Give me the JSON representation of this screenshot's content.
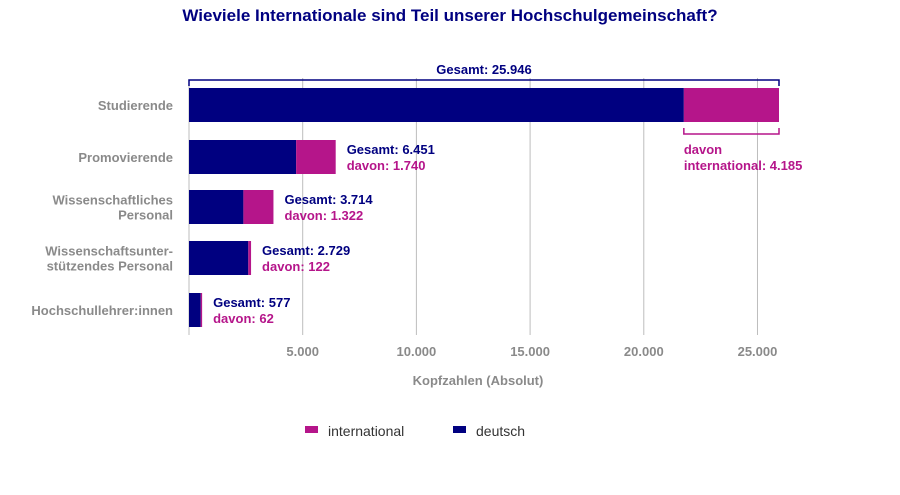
{
  "chart_data": {
    "type": "bar",
    "orientation": "horizontal",
    "stacked": true,
    "title": "Wieviele Internationale sind Teil unserer Hochschulgemeinschaft?",
    "xlabel": "Kopfzahlen (Absolut)",
    "xlim": [
      0,
      26000
    ],
    "xticks": [
      5000,
      10000,
      15000,
      20000,
      25000
    ],
    "xtick_labels": [
      "5.000",
      "10.000",
      "15.000",
      "20.000",
      "25.000"
    ],
    "grid": "vertical",
    "legend_position": "bottom",
    "categories": [
      [
        "Studierende"
      ],
      [
        "Promovierende"
      ],
      [
        "Wissenschaftliches",
        "Personal"
      ],
      [
        "Wissenschaftsunter-",
        "stützendes Personal"
      ],
      [
        "Hochschullehrer:innen"
      ]
    ],
    "series": [
      {
        "name": "deutsch",
        "color": "#000080",
        "values": [
          21761,
          4711,
          2392,
          2607,
          515
        ]
      },
      {
        "name": "international",
        "color": "#b5158a",
        "values": [
          4185,
          1740,
          1322,
          122,
          62
        ]
      }
    ],
    "annotations": [
      {
        "total_label": "Gesamt: 25.946",
        "int_label": [
          "davon",
          "international: 4.185"
        ]
      },
      {
        "total_label": "Gesamt: 6.451",
        "int_label": [
          "davon: 1.740"
        ]
      },
      {
        "total_label": "Gesamt: 3.714",
        "int_label": [
          "davon: 1.322"
        ]
      },
      {
        "total_label": "Gesamt: 2.729",
        "int_label": [
          "davon: 122"
        ]
      },
      {
        "total_label": "Gesamt: 577",
        "int_label": [
          "davon: 62"
        ]
      }
    ]
  },
  "legend": [
    {
      "label": "international",
      "color": "#b5158a"
    },
    {
      "label": "deutsch",
      "color": "#000080"
    }
  ]
}
